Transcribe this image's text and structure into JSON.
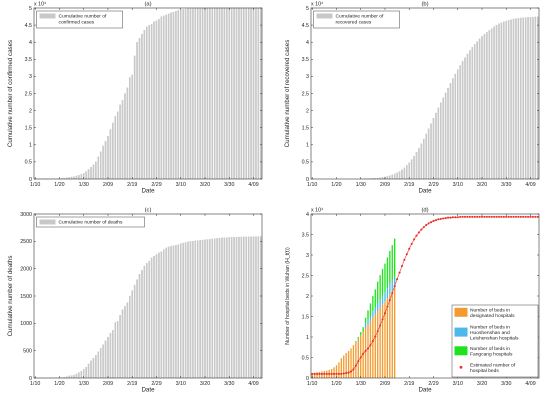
{
  "chart_data": [
    {
      "panel": "(a)",
      "type": "bar",
      "title": "(a)",
      "xlabel": "Date",
      "ylabel": "Cumulative number of confirmed cases",
      "multiplier": "x 10⁴",
      "ylim": [
        0,
        5
      ],
      "yticks": [
        "0",
        "0.5",
        "1",
        "1.5",
        "2",
        "2.5",
        "3",
        "3.5",
        "4",
        "4.5",
        "5"
      ],
      "xticks": [
        "1/10",
        "1/20",
        "1/30",
        "2/09",
        "2/19",
        "2/29",
        "3/10",
        "3/20",
        "3/30",
        "4/09"
      ],
      "legend": {
        "label": "Cumulative number of confirmed cases",
        "lines": [
          "Cumulative number of",
          "confirmed cases"
        ],
        "color": "#c8c8c8",
        "placement": "top-left"
      },
      "x_start": "1/10",
      "values": [
        0.004,
        0.004,
        0.004,
        0.004,
        0.004,
        0.004,
        0.004,
        0.004,
        0.004,
        0.005,
        0.007,
        0.02,
        0.03,
        0.04,
        0.05,
        0.06,
        0.07,
        0.09,
        0.11,
        0.14,
        0.17,
        0.22,
        0.28,
        0.34,
        0.42,
        0.5,
        0.65,
        0.8,
        0.97,
        1.1,
        1.25,
        1.45,
        1.64,
        1.83,
        1.97,
        2.17,
        2.3,
        2.5,
        2.67,
        2.97,
        3.05,
        3.6,
        4.0,
        4.12,
        4.24,
        4.35,
        4.45,
        4.5,
        4.53,
        4.6,
        4.63,
        4.67,
        4.75,
        4.77,
        4.8,
        4.83,
        4.86,
        4.88,
        4.91,
        4.93,
        4.95,
        4.96,
        4.97,
        4.98,
        4.98,
        4.98,
        4.99,
        4.99,
        4.99,
        4.99,
        4.99,
        5.0,
        5.0,
        5.0,
        5.0,
        5.0,
        5.0,
        5.0,
        5.0,
        5.0,
        5.0,
        5.0,
        5.0,
        5.0,
        5.0,
        5.0,
        5.0,
        5.0,
        5.0,
        5.0,
        5.0,
        5.0,
        5.0,
        5.0
      ]
    },
    {
      "panel": "(b)",
      "type": "bar",
      "title": "(b)",
      "xlabel": "Date",
      "ylabel": "Cumulative number of recovered cases",
      "multiplier": "x 10⁴",
      "ylim": [
        0,
        5
      ],
      "yticks": [
        "0",
        "0.5",
        "1",
        "1.5",
        "2",
        "2.5",
        "3",
        "3.5",
        "4",
        "4.5",
        "5"
      ],
      "xticks": [
        "1/10",
        "1/20",
        "1/30",
        "2/09",
        "2/19",
        "2/29",
        "3/10",
        "3/20",
        "3/30",
        "4/09"
      ],
      "legend": {
        "label": "Cumulative number of recovered cases",
        "lines": [
          "Cumulative number of",
          "recovered cases"
        ],
        "color": "#c8c8c8",
        "placement": "top-left"
      },
      "x_start": "1/10",
      "values": [
        0,
        0,
        0,
        0,
        0,
        0,
        0,
        0,
        0,
        0,
        0,
        0,
        0,
        0,
        0,
        0,
        0,
        0,
        0,
        0,
        0.003,
        0.005,
        0.008,
        0.012,
        0.016,
        0.02,
        0.025,
        0.03,
        0.04,
        0.05,
        0.06,
        0.08,
        0.1,
        0.12,
        0.15,
        0.18,
        0.22,
        0.27,
        0.33,
        0.4,
        0.48,
        0.57,
        0.67,
        0.78,
        0.9,
        1.03,
        1.17,
        1.32,
        1.47,
        1.62,
        1.78,
        1.93,
        2.08,
        2.23,
        2.38,
        2.52,
        2.66,
        2.8,
        2.94,
        3.07,
        3.2,
        3.32,
        3.44,
        3.55,
        3.66,
        3.76,
        3.85,
        3.94,
        4.02,
        4.1,
        4.17,
        4.23,
        4.29,
        4.35,
        4.4,
        4.45,
        4.5,
        4.54,
        4.57,
        4.6,
        4.62,
        4.64,
        4.66,
        4.68,
        4.69,
        4.7,
        4.71,
        4.72,
        4.72,
        4.73,
        4.73,
        4.73,
        4.74,
        4.74
      ]
    },
    {
      "panel": "(c)",
      "type": "bar",
      "title": "(c)",
      "xlabel": "Date",
      "ylabel": "Cumulative number of deaths",
      "ylim": [
        0,
        3000
      ],
      "yticks": [
        "0",
        "500",
        "1000",
        "1500",
        "2000",
        "2500",
        "3000"
      ],
      "xticks": [
        "1/10",
        "1/20",
        "1/30",
        "2/09",
        "2/19",
        "2/29",
        "3/10",
        "3/20",
        "3/30",
        "4/09"
      ],
      "legend": {
        "label": "Cumulative number of deaths",
        "lines": [
          "Cumulative number of deaths"
        ],
        "color": "#c8c8c8",
        "placement": "top-left"
      },
      "x_start": "1/10",
      "values": [
        1,
        1,
        1,
        1,
        1,
        1,
        2,
        2,
        2,
        4,
        6,
        9,
        17,
        24,
        39,
        45,
        52,
        76,
        100,
        125,
        160,
        200,
        260,
        313,
        362,
        414,
        478,
        545,
        608,
        681,
        748,
        820,
        872,
        1016,
        1036,
        1150,
        1250,
        1310,
        1380,
        1500,
        1600,
        1700,
        1800,
        1900,
        1970,
        2050,
        2100,
        2140,
        2200,
        2230,
        2260,
        2290,
        2310,
        2350,
        2380,
        2400,
        2410,
        2420,
        2430,
        2440,
        2460,
        2470,
        2480,
        2490,
        2500,
        2505,
        2510,
        2515,
        2520,
        2525,
        2530,
        2535,
        2540,
        2545,
        2550,
        2555,
        2560,
        2563,
        2566,
        2569,
        2572,
        2575,
        2577,
        2579,
        2580,
        2581,
        2582,
        2583,
        2584,
        2585,
        2586,
        2587,
        2588,
        2588
      ]
    },
    {
      "panel": "(d)",
      "type": "bar",
      "stacked": true,
      "title": "(d)",
      "xlabel": "Date",
      "ylabel": "Number of hospital beds in Wuhan (H_t(t))",
      "multiplier": "x 10⁴",
      "ylim": [
        0,
        4
      ],
      "yticks": [
        "0",
        "0.5",
        "1",
        "1.5",
        "2",
        "2.5",
        "3",
        "3.5",
        "4"
      ],
      "xticks": [
        "1/10",
        "1/20",
        "1/30",
        "2/09",
        "2/19",
        "2/29",
        "3/10",
        "3/20",
        "3/30",
        "4/09"
      ],
      "legend_placement": "bottom-right",
      "x_start": "1/10",
      "series": [
        {
          "name": "Number of beds in designated hospitals",
          "lines": [
            "Number of beds in",
            "designated hospitals"
          ],
          "color": "#f39b2f",
          "values": [
            0.12,
            0.13,
            0.14,
            0.15,
            0.16,
            0.17,
            0.18,
            0.2,
            0.22,
            0.26,
            0.31,
            0.38,
            0.48,
            0.55,
            0.61,
            0.66,
            0.72,
            0.8,
            0.88,
            0.96,
            1.04,
            1.12,
            1.22,
            1.3,
            1.38,
            1.48,
            1.55,
            1.63,
            1.71,
            1.79,
            1.86,
            1.95,
            2.05,
            2.13,
            2.2
          ]
        },
        {
          "name": "Number of beds in Huoshenshan and Leishenshan hospitals",
          "lines": [
            "Number of beds in",
            "Huoshenshan and",
            "Leishenshan hospitals"
          ],
          "color": "#4db8ea",
          "values": [
            0,
            0,
            0,
            0,
            0,
            0,
            0,
            0,
            0,
            0,
            0,
            0,
            0,
            0,
            0,
            0,
            0,
            0,
            0,
            0,
            0,
            0,
            0.1,
            0.12,
            0.12,
            0.15,
            0.16,
            0.18,
            0.2,
            0.22,
            0.23,
            0.24,
            0.25,
            0.25,
            0.26
          ]
        },
        {
          "name": "Number of beds in Fangcang hospitals",
          "lines": [
            "Number of beds in",
            "Fangcang hospitals"
          ],
          "color": "#1ee31e",
          "values": [
            0,
            0,
            0,
            0,
            0,
            0,
            0,
            0,
            0,
            0,
            0,
            0,
            0,
            0,
            0,
            0,
            0,
            0,
            0.02,
            0.04,
            0.08,
            0.12,
            0.15,
            0.23,
            0.32,
            0.37,
            0.45,
            0.54,
            0.6,
            0.65,
            0.7,
            0.75,
            0.8,
            0.86,
            0.94
          ]
        }
      ],
      "estimate": {
        "name": "Estimated number of hospital beds",
        "lines": [
          "Estimated number of",
          "hospital beds"
        ],
        "color": "#e8312a",
        "values": [
          0.1,
          0.1,
          0.1,
          0.1,
          0.1,
          0.1,
          0.1,
          0.1,
          0.1,
          0.1,
          0.1,
          0.1,
          0.1,
          0.11,
          0.12,
          0.13,
          0.16,
          0.21,
          0.3,
          0.41,
          0.5,
          0.59,
          0.66,
          0.72,
          0.8,
          0.9,
          1.01,
          1.14,
          1.28,
          1.43,
          1.58,
          1.74,
          1.9,
          2.07,
          2.24,
          2.41,
          2.57,
          2.73,
          2.88,
          3.02,
          3.15,
          3.27,
          3.38,
          3.47,
          3.55,
          3.62,
          3.68,
          3.73,
          3.77,
          3.8,
          3.83,
          3.85,
          3.87,
          3.88,
          3.89,
          3.9,
          3.91,
          3.91,
          3.92,
          3.92,
          3.92,
          3.93,
          3.93,
          3.93,
          3.93,
          3.93,
          3.93,
          3.93,
          3.93,
          3.93,
          3.93,
          3.93,
          3.93,
          3.93,
          3.93,
          3.93,
          3.93,
          3.93,
          3.93,
          3.93,
          3.93,
          3.93,
          3.93,
          3.93,
          3.93,
          3.93,
          3.93,
          3.93,
          3.93,
          3.93,
          3.93,
          3.93,
          3.93,
          3.93
        ]
      }
    }
  ]
}
